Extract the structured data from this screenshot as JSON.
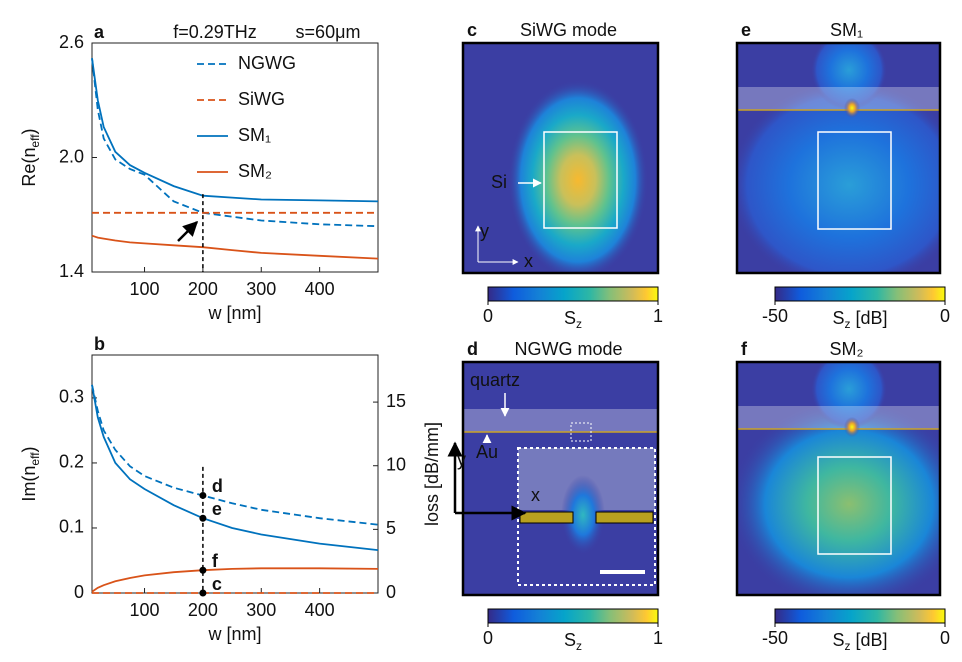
{
  "chart_data": [
    {
      "type": "line",
      "label": "a",
      "title": "f=0.29THz",
      "subtitle": "s=60μm",
      "xlabel": "w [nm]",
      "ylabel": [
        "Re(n",
        "eff",
        ")"
      ],
      "x": [
        10,
        20,
        30,
        50,
        75,
        100,
        150,
        200,
        250,
        300,
        400,
        500
      ],
      "xlim": [
        10,
        500
      ],
      "xticks": [
        100,
        200,
        300,
        400
      ],
      "ylim": [
        1.4,
        2.6
      ],
      "yticks": [
        1.4,
        {
          "value": 2,
          "label": "2.0"
        },
        2.6
      ],
      "legend": "top-right",
      "vline": 200,
      "series": [
        {
          "name": "NGWG",
          "color": "#0072BD",
          "dash": true,
          "values": [
            2.52,
            2.25,
            2.1,
            1.99,
            1.94,
            1.91,
            1.77,
            1.71,
            1.69,
            1.67,
            1.65,
            1.64
          ]
        },
        {
          "name": "SiWG",
          "color": "#D95319",
          "dash": true,
          "values": [
            1.71,
            1.71,
            1.71,
            1.71,
            1.71,
            1.71,
            1.71,
            1.71,
            1.71,
            1.71,
            1.71,
            1.71
          ]
        },
        {
          "name": "SM₁",
          "color": "#0072BD",
          "dash": false,
          "values": [
            2.52,
            2.3,
            2.16,
            2.03,
            1.96,
            1.92,
            1.85,
            1.8,
            1.79,
            1.78,
            1.775,
            1.77
          ]
        },
        {
          "name": "SM₂",
          "color": "#D95319",
          "dash": false,
          "values": [
            1.59,
            1.58,
            1.575,
            1.565,
            1.555,
            1.55,
            1.54,
            1.53,
            1.515,
            1.5,
            1.485,
            1.47
          ]
        }
      ]
    },
    {
      "type": "line",
      "label": "b",
      "xlabel": "w [nm]",
      "ylabel": [
        "Im(n",
        "eff",
        ")"
      ],
      "y2label": "loss [dB/mm]",
      "x": [
        10,
        20,
        30,
        50,
        75,
        100,
        150,
        200,
        250,
        300,
        400,
        500
      ],
      "xlim": [
        10,
        500
      ],
      "xticks": [
        100,
        200,
        300,
        400
      ],
      "ylim": [
        0,
        0.366
      ],
      "yticks": [
        0,
        0.1,
        0.2,
        0.3
      ],
      "y2lim": [
        0,
        18.7
      ],
      "y2ticks": [
        0,
        5,
        10,
        15
      ],
      "vline": 200,
      "points": [
        {
          "label": "d",
          "value": 0.15
        },
        {
          "label": "e",
          "value": 0.115
        },
        {
          "label": "f",
          "value": 0.035
        },
        {
          "label": "c",
          "value": 0
        }
      ],
      "series": [
        {
          "color": "#0072BD",
          "dash": true,
          "values": [
            0.32,
            0.28,
            0.25,
            0.22,
            0.195,
            0.18,
            0.162,
            0.15,
            0.138,
            0.128,
            0.115,
            0.105
          ]
        },
        {
          "color": "#D95319",
          "dash": true,
          "values": [
            0,
            0,
            0,
            0,
            0,
            0,
            0,
            0,
            0,
            0,
            0,
            0
          ]
        },
        {
          "color": "#0072BD",
          "dash": false,
          "values": [
            0.32,
            0.27,
            0.24,
            0.2,
            0.175,
            0.16,
            0.135,
            0.115,
            0.1,
            0.09,
            0.076,
            0.066
          ]
        },
        {
          "color": "#D95319",
          "dash": false,
          "values": [
            0.002,
            0.008,
            0.012,
            0.018,
            0.023,
            0.027,
            0.032,
            0.035,
            0.037,
            0.038,
            0.038,
            0.037
          ]
        }
      ]
    }
  ],
  "field_panels": [
    {
      "label": "c",
      "title": "SiWG mode",
      "annotations": [
        "Si"
      ],
      "axes": [
        "y",
        "x"
      ],
      "colorbar": {
        "ticks": [
          0,
          1
        ],
        "label": [
          "S",
          "z"
        ]
      }
    },
    {
      "label": "e",
      "title": "SM₁",
      "colorbar": {
        "ticks": [
          -50,
          0
        ],
        "label": [
          "S",
          "z",
          " [dB]"
        ]
      }
    },
    {
      "label": "d",
      "title": "NGWG mode",
      "annotations": [
        "quartz",
        "Au"
      ],
      "axes": [
        "y",
        "x"
      ],
      "colorbar": {
        "ticks": [
          0,
          1
        ],
        "label": [
          "S",
          "z"
        ]
      }
    },
    {
      "label": "f",
      "title": "SM₂",
      "colorbar": {
        "ticks": [
          -50,
          0
        ],
        "label": [
          "S",
          "z",
          " [dB]"
        ]
      }
    }
  ]
}
